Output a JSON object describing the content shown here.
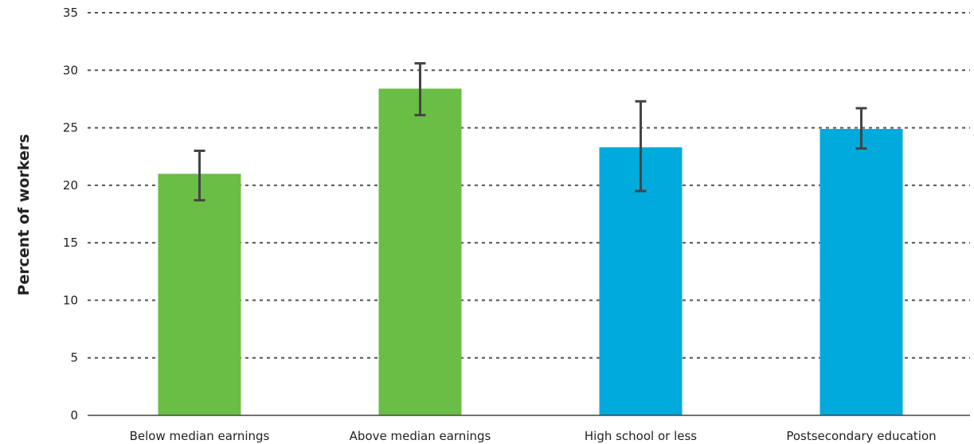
{
  "chart_data": {
    "type": "bar",
    "ylabel": "Percent of workers",
    "ylim": [
      0,
      35
    ],
    "yticks": [
      0,
      5,
      10,
      15,
      20,
      25,
      30,
      35
    ],
    "grid": true,
    "categories": [
      "Below median earnings",
      "Above median earnings",
      "High school or less",
      "Postsecondary education"
    ],
    "values": [
      21.0,
      28.4,
      23.3,
      24.9
    ],
    "error_low": [
      18.7,
      26.1,
      19.5,
      23.2
    ],
    "error_high": [
      23.0,
      30.6,
      27.3,
      26.7
    ],
    "colors": [
      "#6abd45",
      "#6abd45",
      "#00aadc",
      "#00aadc"
    ]
  }
}
